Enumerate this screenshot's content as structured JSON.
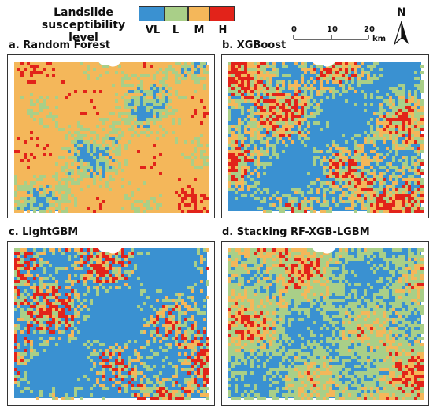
{
  "legend": {
    "title": "Landslide susceptibility level",
    "levels": [
      {
        "label": "VL",
        "color": "#3a91d1"
      },
      {
        "label": "L",
        "color": "#a9cf88"
      },
      {
        "label": "M",
        "color": "#f4b75a"
      },
      {
        "label": "H",
        "color": "#e2231a"
      }
    ]
  },
  "scale_bar": {
    "ticks": [
      "0",
      "10",
      "20"
    ],
    "unit": "km"
  },
  "north_arrow": {
    "label": "N",
    "icon": "north-arrow-icon"
  },
  "panels": [
    {
      "title": "a. Random Forest",
      "mix": [
        0.1,
        0.22,
        0.52,
        0.16
      ]
    },
    {
      "title": "b. XGBoost",
      "mix": [
        0.45,
        0.15,
        0.15,
        0.25
      ]
    },
    {
      "title": "c. LightGBM",
      "mix": [
        0.55,
        0.1,
        0.1,
        0.25
      ]
    },
    {
      "title": "d. Stacking RF-XGB-LGBM",
      "mix": [
        0.35,
        0.3,
        0.18,
        0.17
      ]
    }
  ]
}
